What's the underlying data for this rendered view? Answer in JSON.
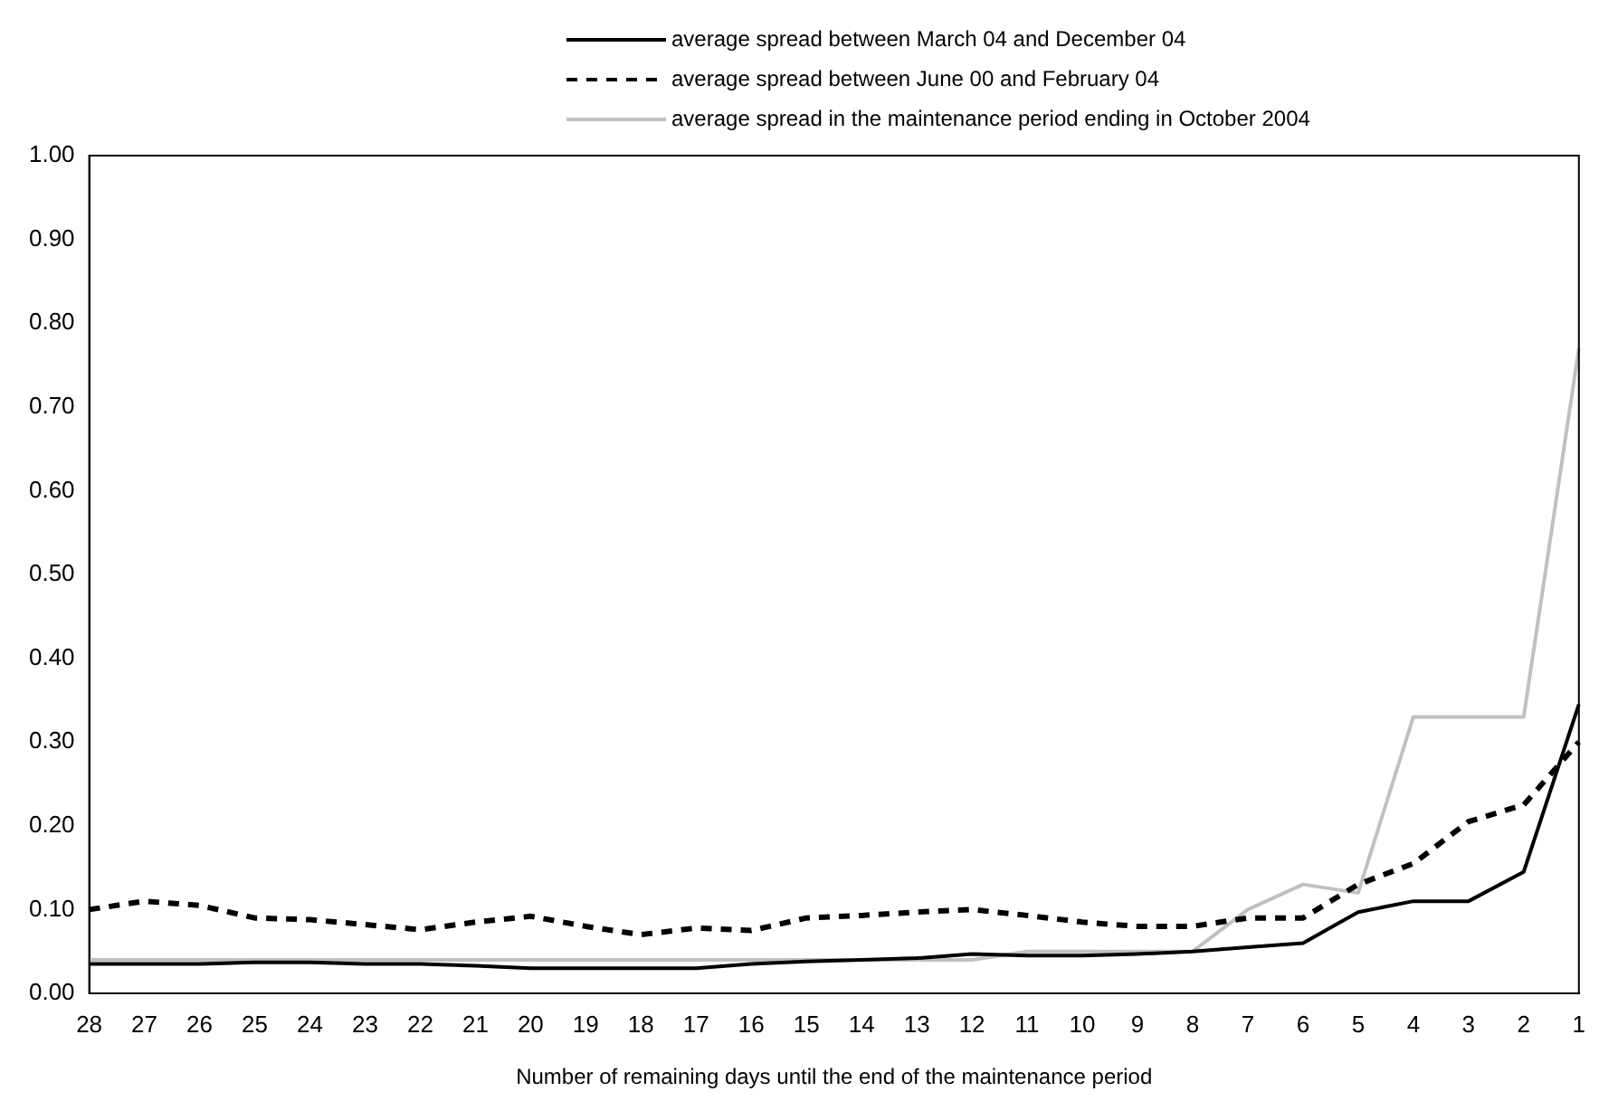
{
  "chart_data": {
    "type": "line",
    "xlabel": "Number of remaining days until the end of the maintenance period",
    "categories": [
      "28",
      "27",
      "26",
      "25",
      "24",
      "23",
      "22",
      "21",
      "20",
      "19",
      "18",
      "17",
      "16",
      "15",
      "14",
      "13",
      "12",
      "11",
      "10",
      "9",
      "8",
      "7",
      "6",
      "5",
      "4",
      "3",
      "2",
      "1"
    ],
    "series": [
      {
        "name": "average spread between March 04 and December 04",
        "color": "#000000",
        "line_style": "solid",
        "values": [
          0.035,
          0.035,
          0.035,
          0.037,
          0.037,
          0.035,
          0.035,
          0.033,
          0.03,
          0.03,
          0.03,
          0.03,
          0.035,
          0.038,
          0.04,
          0.042,
          0.047,
          0.045,
          0.045,
          0.047,
          0.05,
          0.055,
          0.06,
          0.097,
          0.11,
          0.11,
          0.145,
          0.345
        ]
      },
      {
        "name": "average spread between June 00 and February 04",
        "color": "#000000",
        "line_style": "dashed",
        "values": [
          0.1,
          0.11,
          0.105,
          0.09,
          0.088,
          0.082,
          0.076,
          0.085,
          0.092,
          0.08,
          0.07,
          0.078,
          0.075,
          0.09,
          0.093,
          0.097,
          0.1,
          0.093,
          0.085,
          0.08,
          0.08,
          0.09,
          0.09,
          0.13,
          0.155,
          0.205,
          0.225,
          0.3
        ]
      },
      {
        "name": "average spread in the maintenance period ending in October 2004",
        "color": "#c0c0c0",
        "line_style": "solid",
        "values": [
          0.04,
          0.04,
          0.04,
          0.04,
          0.04,
          0.04,
          0.04,
          0.04,
          0.04,
          0.04,
          0.04,
          0.04,
          0.04,
          0.04,
          0.04,
          0.04,
          0.04,
          0.05,
          0.05,
          0.05,
          0.05,
          0.1,
          0.13,
          0.12,
          0.33,
          0.33,
          0.33,
          0.77
        ]
      }
    ],
    "ylim": [
      0,
      1
    ],
    "yticks": [
      {
        "value": 0,
        "label": "0.00"
      },
      {
        "value": 0.1,
        "label": "0.10"
      },
      {
        "value": 0.2,
        "label": "0.20"
      },
      {
        "value": 0.3,
        "label": "0.30"
      },
      {
        "value": 0.4,
        "label": "0.40"
      },
      {
        "value": 0.5,
        "label": "0.50"
      },
      {
        "value": 0.6,
        "label": "0.60"
      },
      {
        "value": 0.7,
        "label": "0.70"
      },
      {
        "value": 0.8,
        "label": "0.80"
      },
      {
        "value": 0.9,
        "label": "0.90"
      },
      {
        "value": 1,
        "label": "1.00"
      }
    ],
    "grid": false,
    "legend": "top",
    "marker": "none"
  }
}
